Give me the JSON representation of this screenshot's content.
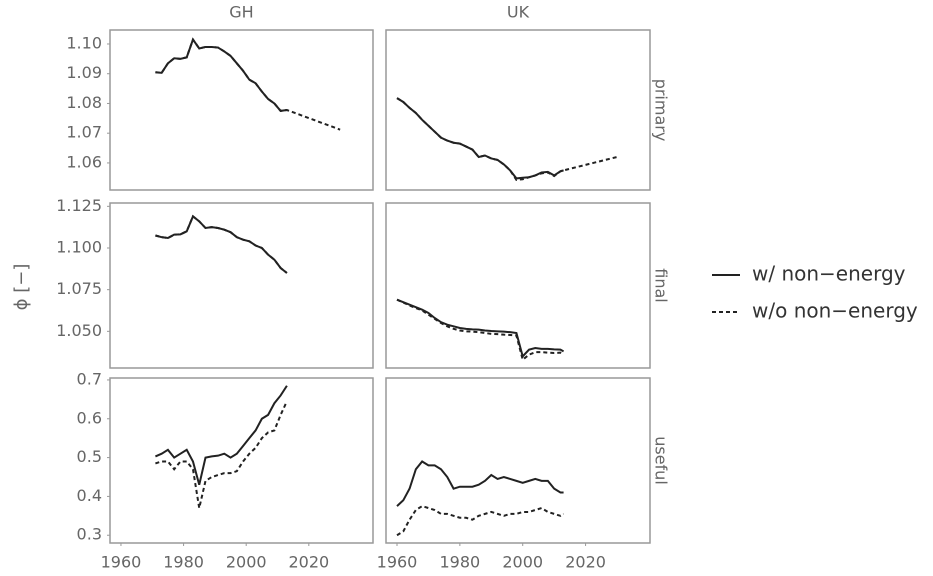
{
  "ylabel": "ϕ [−]",
  "facets": {
    "columns": [
      "GH",
      "UK"
    ],
    "rows": [
      "primary",
      "final",
      "useful"
    ]
  },
  "chart_data": [
    {
      "type": "line",
      "xlim": [
        1956.5,
        2040.5
      ],
      "ylim": [
        1.0509,
        1.1047
      ],
      "yticks": [
        1.06,
        1.07,
        1.08,
        1.09,
        {
          "value": 1.1,
          "label": "1.10"
        }
      ],
      "x": [
        1971,
        1973,
        1975,
        1977,
        1979,
        1981,
        1983,
        1985,
        1987,
        1989,
        1991,
        1993,
        1995,
        1997,
        1999,
        2001,
        2003,
        2005,
        2007,
        2009,
        2011,
        2013,
        2030
      ],
      "series": [
        {
          "name": "w/ non−energy",
          "color": "#222222",
          "linestyle": "solid",
          "values": [
            1.0905,
            1.0903,
            1.0935,
            1.0952,
            1.095,
            1.0955,
            1.1015,
            1.0985,
            1.099,
            1.099,
            1.0988,
            1.0975,
            1.096,
            1.0935,
            1.091,
            1.088,
            1.0868,
            1.084,
            1.0815,
            1.08,
            1.0775,
            1.0778,
            null
          ]
        },
        {
          "name": "w/o non−energy",
          "color": "#222222",
          "linestyle": "dashed",
          "values": [
            1.0905,
            1.0903,
            1.0935,
            1.0952,
            1.095,
            1.0955,
            1.1015,
            1.0985,
            1.099,
            1.099,
            1.0988,
            1.0975,
            1.096,
            1.0935,
            1.091,
            1.088,
            1.0868,
            1.084,
            1.0815,
            1.08,
            1.0775,
            1.0778,
            1.0712
          ]
        }
      ]
    },
    {
      "type": "line",
      "xlim": [
        1956.5,
        2040.5
      ],
      "ylim": [
        1.0509,
        1.1047
      ],
      "x": [
        1960,
        1962,
        1964,
        1966,
        1968,
        1970,
        1972,
        1974,
        1976,
        1978,
        1980,
        1982,
        1984,
        1986,
        1988,
        1990,
        1992,
        1994,
        1996,
        1998,
        2000,
        2002,
        2004,
        2006,
        2008,
        2010,
        2012,
        2013,
        2030
      ],
      "series": [
        {
          "name": "w/ non−energy",
          "color": "#222222",
          "linestyle": "solid",
          "values": [
            1.0818,
            1.0805,
            1.0785,
            1.0768,
            1.0745,
            1.0725,
            1.0705,
            1.0685,
            1.0675,
            1.0668,
            1.0665,
            1.0655,
            1.0645,
            1.062,
            1.0625,
            1.0615,
            1.061,
            1.0595,
            1.0575,
            1.0548,
            1.055,
            1.0552,
            1.0558,
            1.0568,
            1.057,
            1.0558,
            1.0572,
            1.0575,
            null
          ]
        },
        {
          "name": "w/o non−energy",
          "color": "#222222",
          "linestyle": "dashed",
          "values": [
            1.0818,
            1.0805,
            1.0785,
            1.0768,
            1.0745,
            1.0725,
            1.0705,
            1.0685,
            1.0675,
            1.0668,
            1.0665,
            1.0655,
            1.0645,
            1.062,
            1.0625,
            1.0615,
            1.061,
            1.0595,
            1.0575,
            1.0543,
            1.0545,
            1.0552,
            1.0558,
            1.0565,
            1.0568,
            1.0556,
            1.0572,
            1.0575,
            1.062
          ]
        }
      ]
    },
    {
      "type": "line",
      "xlim": [
        1956.5,
        2040.5
      ],
      "ylim": [
        1.028,
        1.127
      ],
      "yticks": [
        {
          "value": 1.05,
          "label": "1.050"
        },
        1.075,
        {
          "value": 1.1,
          "label": "1.100"
        },
        1.125
      ],
      "x": [
        1971,
        1973,
        1975,
        1977,
        1979,
        1981,
        1983,
        1985,
        1987,
        1989,
        1991,
        1993,
        1995,
        1997,
        1999,
        2001,
        2003,
        2005,
        2007,
        2009,
        2011,
        2013
      ],
      "series": [
        {
          "name": "w/ non−energy",
          "color": "#222222",
          "linestyle": "solid",
          "values": [
            1.1075,
            1.1065,
            1.106,
            1.108,
            1.1082,
            1.11,
            1.119,
            1.116,
            1.112,
            1.1125,
            1.112,
            1.111,
            1.1095,
            1.1065,
            1.105,
            1.104,
            1.1015,
            1.1,
            1.096,
            1.093,
            1.088,
            1.085
          ]
        },
        {
          "name": "w/o non−energy",
          "color": "#222222",
          "linestyle": "dashed",
          "values": [
            1.1075,
            1.1065,
            1.106,
            1.108,
            1.1082,
            1.11,
            1.119,
            1.116,
            1.112,
            1.1125,
            1.112,
            1.111,
            1.1095,
            1.1065,
            1.105,
            1.104,
            1.1015,
            1.1,
            1.096,
            1.093,
            1.088,
            1.085
          ]
        }
      ]
    },
    {
      "type": "line",
      "xlim": [
        1956.5,
        2040.5
      ],
      "ylim": [
        1.028,
        1.127
      ],
      "x": [
        1960,
        1962,
        1964,
        1966,
        1968,
        1970,
        1972,
        1974,
        1976,
        1978,
        1980,
        1982,
        1984,
        1986,
        1988,
        1990,
        1992,
        1994,
        1996,
        1998,
        2000,
        2002,
        2004,
        2006,
        2008,
        2010,
        2012,
        2013
      ],
      "series": [
        {
          "name": "w/ non−energy",
          "color": "#222222",
          "linestyle": "solid",
          "values": [
            1.069,
            1.0675,
            1.066,
            1.0645,
            1.063,
            1.061,
            1.058,
            1.0555,
            1.054,
            1.053,
            1.052,
            1.0515,
            1.0512,
            1.051,
            1.0505,
            1.0502,
            1.05,
            1.0498,
            1.0495,
            1.049,
            1.035,
            1.039,
            1.04,
            1.0395,
            1.0395,
            1.0392,
            1.039,
            1.038
          ]
        },
        {
          "name": "w/o non−energy",
          "color": "#222222",
          "linestyle": "dashed",
          "values": [
            1.069,
            1.0673,
            1.0655,
            1.064,
            1.0625,
            1.06,
            1.0575,
            1.055,
            1.053,
            1.0515,
            1.0505,
            1.05,
            1.0498,
            1.0495,
            1.049,
            1.0485,
            1.0483,
            1.048,
            1.0478,
            1.0475,
            1.033,
            1.036,
            1.0375,
            1.0375,
            1.0372,
            1.037,
            1.0372,
            1.0365
          ]
        }
      ]
    },
    {
      "type": "line",
      "xlim": [
        1956.5,
        2040.5
      ],
      "ylim": [
        0.28,
        0.705
      ],
      "yticks": [
        0.3,
        0.4,
        0.5,
        0.6,
        0.7
      ],
      "xticks": [
        1960,
        1980,
        2000,
        2020
      ],
      "x": [
        1971,
        1973,
        1975,
        1977,
        1979,
        1981,
        1983,
        1985,
        1987,
        1989,
        1991,
        1993,
        1995,
        1997,
        1999,
        2001,
        2003,
        2005,
        2007,
        2009,
        2011,
        2013
      ],
      "series": [
        {
          "name": "w/ non−energy",
          "color": "#222222",
          "linestyle": "solid",
          "values": [
            0.503,
            0.51,
            0.52,
            0.5,
            0.51,
            0.52,
            0.49,
            0.43,
            0.5,
            0.503,
            0.505,
            0.51,
            0.5,
            0.51,
            0.53,
            0.55,
            0.57,
            0.6,
            0.61,
            0.64,
            0.66,
            0.685
          ]
        },
        {
          "name": "w/o non−energy",
          "color": "#222222",
          "linestyle": "dashed",
          "values": [
            0.485,
            0.49,
            0.49,
            0.47,
            0.49,
            0.49,
            0.47,
            0.37,
            0.44,
            0.45,
            0.455,
            0.46,
            0.46,
            0.465,
            0.49,
            0.51,
            0.525,
            0.55,
            0.565,
            0.57,
            0.61,
            0.645
          ]
        }
      ]
    },
    {
      "type": "line",
      "xlim": [
        1956.5,
        2040.5
      ],
      "ylim": [
        0.28,
        0.705
      ],
      "xticks": [
        1960,
        1980,
        2000,
        2020
      ],
      "x": [
        1960,
        1962,
        1964,
        1966,
        1968,
        1970,
        1972,
        1974,
        1976,
        1978,
        1980,
        1982,
        1984,
        1986,
        1988,
        1990,
        1992,
        1994,
        1996,
        1998,
        2000,
        2002,
        2004,
        2006,
        2008,
        2010,
        2012,
        2013
      ],
      "series": [
        {
          "name": "w/ non−energy",
          "color": "#222222",
          "linestyle": "solid",
          "values": [
            0.375,
            0.39,
            0.42,
            0.47,
            0.49,
            0.48,
            0.48,
            0.47,
            0.45,
            0.42,
            0.425,
            0.425,
            0.425,
            0.43,
            0.44,
            0.455,
            0.445,
            0.45,
            0.445,
            0.44,
            0.435,
            0.44,
            0.445,
            0.44,
            0.44,
            0.42,
            0.41,
            0.41
          ]
        },
        {
          "name": "w/o non−energy",
          "color": "#222222",
          "linestyle": "dashed",
          "values": [
            0.3,
            0.31,
            0.34,
            0.365,
            0.375,
            0.37,
            0.365,
            0.355,
            0.355,
            0.35,
            0.345,
            0.345,
            0.34,
            0.35,
            0.355,
            0.36,
            0.355,
            0.35,
            0.355,
            0.355,
            0.36,
            0.36,
            0.365,
            0.37,
            0.36,
            0.355,
            0.35,
            0.355
          ]
        }
      ]
    }
  ]
}
